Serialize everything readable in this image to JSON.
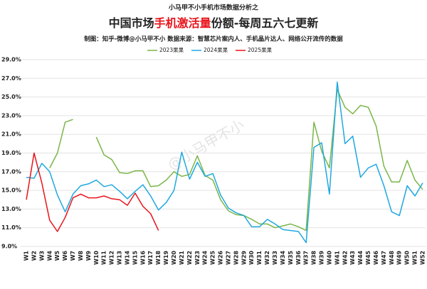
{
  "chart_data": {
    "type": "line",
    "pretitle": "小马甲不小手机市场数据分析之",
    "title": [
      "中国市场",
      "手机激活量",
      "份额-每周五六七更新"
    ],
    "title_highlight_color": "#e8141c",
    "subtitle": "制图：知乎-微博@小马甲不小   数据来源：智慧芯片案内人、手机晶片达人、网络公开流传的数据",
    "watermark": "@小马甲不小",
    "categories": [
      "W1",
      "W2",
      "W3",
      "W4",
      "W5",
      "W6",
      "W7",
      "W8",
      "W9",
      "W10",
      "W11",
      "W12",
      "W13",
      "W14",
      "W15",
      "W16",
      "W17",
      "W18",
      "W19",
      "W20",
      "W21",
      "W22",
      "W23",
      "W24",
      "W25",
      "W26",
      "W27",
      "W28",
      "W29",
      "W30",
      "W31",
      "W32",
      "W33",
      "W34",
      "W35",
      "W36",
      "W37",
      "W38",
      "W39",
      "W40",
      "W41",
      "W42",
      "W43",
      "W44",
      "W45",
      "W46",
      "W47",
      "W48",
      "W49",
      "W50",
      "W51",
      "W52"
    ],
    "series": [
      {
        "name": "2023果果",
        "color": "#7ab648",
        "values": [
          null,
          null,
          null,
          17.4,
          19.0,
          22.3,
          22.6,
          null,
          null,
          20.7,
          18.8,
          18.3,
          16.9,
          16.8,
          17.1,
          17.1,
          15.4,
          15.5,
          16.1,
          17.0,
          16.5,
          16.7,
          18.7,
          16.6,
          16.1,
          14.0,
          12.8,
          12.4,
          12.3,
          11.9,
          11.4,
          11.4,
          11.0,
          11.2,
          11.4,
          11.1,
          10.7,
          22.3,
          19.2,
          17.4,
          25.8,
          23.9,
          23.2,
          24.1,
          23.9,
          21.9,
          17.6,
          15.9,
          15.9,
          18.2,
          16.1,
          15.1
        ]
      },
      {
        "name": "2024果果",
        "color": "#1fa8e0",
        "values": [
          16.4,
          16.3,
          17.9,
          17.0,
          14.5,
          12.7,
          14.6,
          15.5,
          15.7,
          16.1,
          15.4,
          15.6,
          14.9,
          14.1,
          14.9,
          15.6,
          14.4,
          12.9,
          13.7,
          15.0,
          19.1,
          16.2,
          18.0,
          16.5,
          16.8,
          14.5,
          13.1,
          12.6,
          12.3,
          11.1,
          11.1,
          11.9,
          11.4,
          10.8,
          10.7,
          10.6,
          9.4,
          19.6,
          20.1,
          14.6,
          26.6,
          20.0,
          20.8,
          16.4,
          17.4,
          17.8,
          15.5,
          12.7,
          12.3,
          15.5,
          14.4,
          15.8
        ]
      },
      {
        "name": "2025果果",
        "color": "#e8141c",
        "values": [
          14.0,
          19.0,
          15.8,
          11.8,
          10.6,
          12.1,
          14.2,
          14.6,
          14.2,
          14.2,
          14.4,
          14.1,
          14.0,
          13.4,
          14.7,
          13.3,
          12.5,
          10.7,
          null,
          null,
          null,
          null,
          null,
          null,
          null,
          null,
          null,
          null,
          null,
          null,
          null,
          null,
          null,
          null,
          null,
          null,
          null,
          null,
          null,
          null,
          null,
          null,
          null,
          null,
          null,
          null,
          null,
          null,
          null,
          null,
          null,
          null
        ]
      }
    ],
    "ylim": [
      9,
      29
    ],
    "yticks": [
      {
        "value": 9,
        "label": "9.0%"
      },
      {
        "value": 11,
        "label": "11.0%"
      },
      {
        "value": 13,
        "label": "13.0%"
      },
      {
        "value": 15,
        "label": "15.0%"
      },
      {
        "value": 17,
        "label": "17.0%"
      },
      {
        "value": 19,
        "label": "19.0%"
      },
      {
        "value": 21,
        "label": "21.0%"
      },
      {
        "value": 23,
        "label": "23.0%"
      },
      {
        "value": 25,
        "label": "25.0%"
      },
      {
        "value": 27,
        "label": "27.0%"
      },
      {
        "value": 29,
        "label": "29.0%"
      }
    ],
    "grid": true,
    "legend": "top"
  }
}
